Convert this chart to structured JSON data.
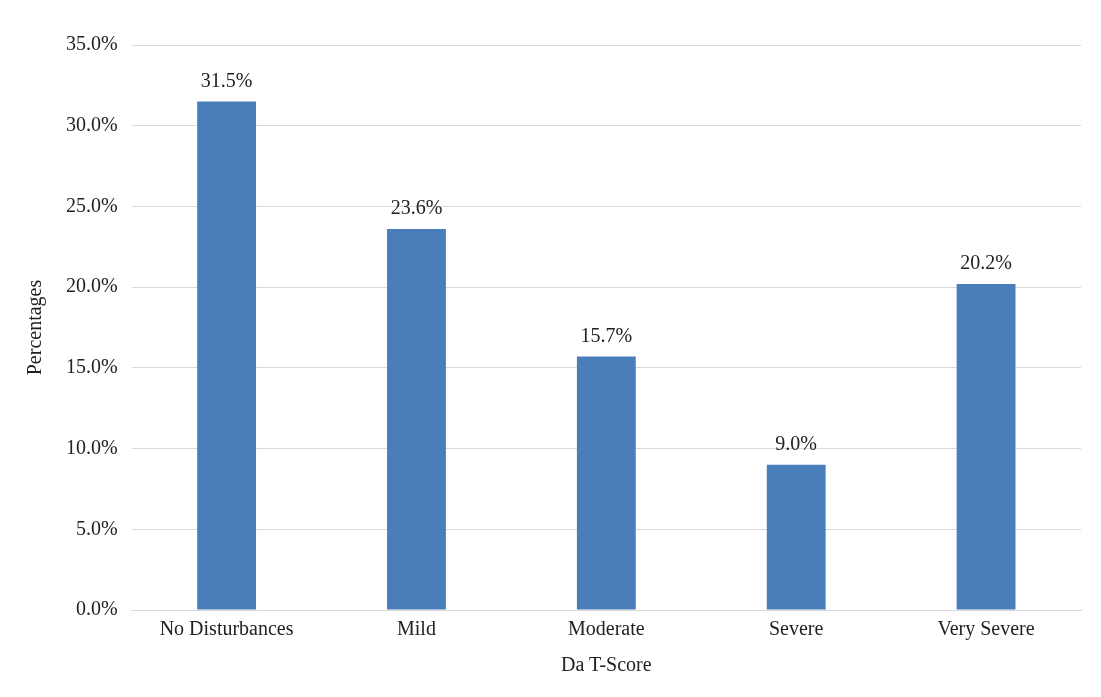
{
  "chart_data": {
    "type": "bar",
    "xlabel": "Da T-Score",
    "ylabel": "Percentages",
    "categories": [
      "No Disturbances",
      "Mild",
      "Moderate",
      "Severe",
      "Very Severe"
    ],
    "values": [
      31.5,
      23.6,
      15.7,
      9.0,
      20.2
    ],
    "value_labels": [
      "31.5%",
      "23.6%",
      "15.7%",
      "9.0%",
      "20.2%"
    ],
    "color": "#4a7ebb",
    "ylim": [
      0,
      35
    ],
    "yticks": [
      {
        "value": 0,
        "label": "0.0%"
      },
      {
        "value": 5,
        "label": "5.0%"
      },
      {
        "value": 10,
        "label": "10.0%"
      },
      {
        "value": 15,
        "label": "15.0%"
      },
      {
        "value": 20,
        "label": "20.0%"
      },
      {
        "value": 25,
        "label": "25.0%"
      },
      {
        "value": 30,
        "label": "30.0%"
      },
      {
        "value": 35,
        "label": "35.0%"
      }
    ],
    "grid": "y"
  }
}
